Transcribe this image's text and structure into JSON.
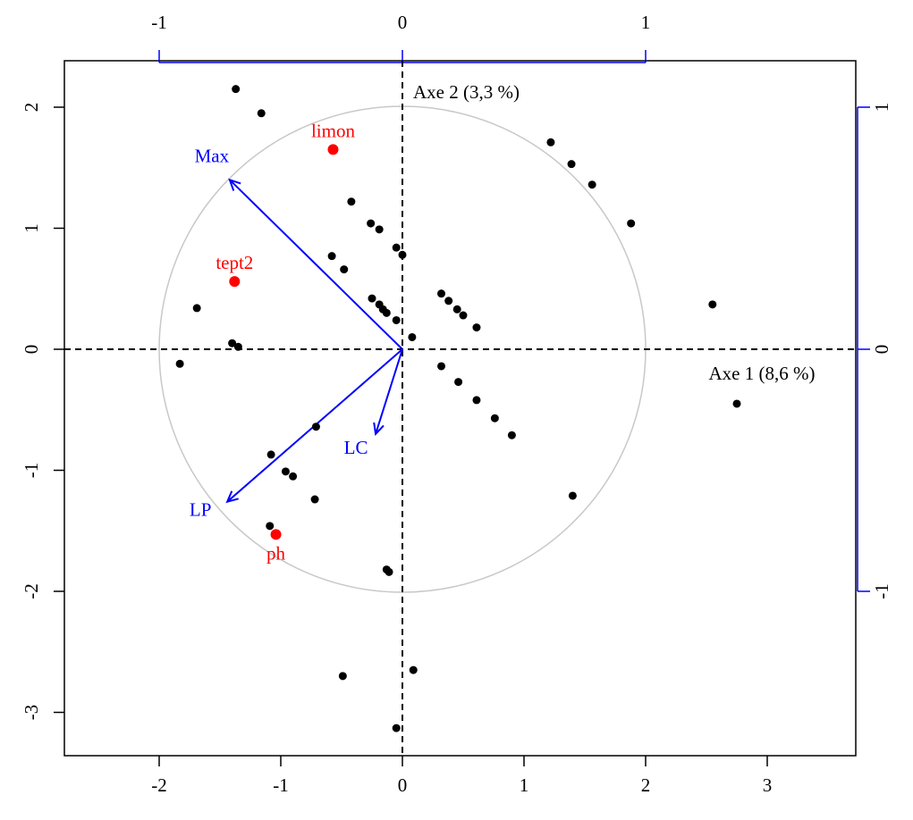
{
  "chart_data": {
    "type": "scatter",
    "title": "",
    "xlabel": "",
    "ylabel": "",
    "xlim": [
      -2.7,
      3.7
    ],
    "ylim": [
      -3.4,
      2.4
    ],
    "bottom_ticks": [
      "-2",
      "-1",
      "0",
      "1",
      "2",
      "3"
    ],
    "left_ticks": [
      "-3",
      "-2",
      "-1",
      "0",
      "1",
      "2"
    ],
    "top_ticks": [
      "-1",
      "0",
      "1"
    ],
    "right_ticks": [
      "-1",
      "0",
      "1"
    ],
    "grid": false,
    "correlation_circle_radius": 2,
    "axis_labels": {
      "axis1": "Axe 1 (8,6 %)",
      "axis2": "Axe 2 (3,3 %)"
    },
    "points": [
      {
        "x": -1.37,
        "y": 2.15
      },
      {
        "x": -1.16,
        "y": 1.95
      },
      {
        "x": -0.42,
        "y": 1.22
      },
      {
        "x": -0.26,
        "y": 1.04
      },
      {
        "x": -0.19,
        "y": 0.99
      },
      {
        "x": -0.05,
        "y": 0.84
      },
      {
        "x": 0.0,
        "y": 0.78
      },
      {
        "x": -0.58,
        "y": 0.77
      },
      {
        "x": -0.48,
        "y": 0.66
      },
      {
        "x": -0.25,
        "y": 0.42
      },
      {
        "x": -0.19,
        "y": 0.37
      },
      {
        "x": -0.16,
        "y": 0.33
      },
      {
        "x": -0.13,
        "y": 0.3
      },
      {
        "x": -0.05,
        "y": 0.24
      },
      {
        "x": 0.08,
        "y": 0.1
      },
      {
        "x": -1.69,
        "y": 0.34
      },
      {
        "x": -1.4,
        "y": 0.05
      },
      {
        "x": -1.35,
        "y": 0.02
      },
      {
        "x": -1.83,
        "y": -0.12
      },
      {
        "x": 1.22,
        "y": 1.71
      },
      {
        "x": 1.39,
        "y": 1.53
      },
      {
        "x": 1.56,
        "y": 1.36
      },
      {
        "x": 1.88,
        "y": 1.04
      },
      {
        "x": 0.32,
        "y": 0.46
      },
      {
        "x": 0.38,
        "y": 0.4
      },
      {
        "x": 0.45,
        "y": 0.33
      },
      {
        "x": 0.5,
        "y": 0.28
      },
      {
        "x": 0.61,
        "y": 0.18
      },
      {
        "x": 2.55,
        "y": 0.37
      },
      {
        "x": 2.75,
        "y": -0.45
      },
      {
        "x": 0.32,
        "y": -0.14
      },
      {
        "x": 0.46,
        "y": -0.27
      },
      {
        "x": 0.61,
        "y": -0.42
      },
      {
        "x": 0.76,
        "y": -0.57
      },
      {
        "x": 0.9,
        "y": -0.71
      },
      {
        "x": -0.71,
        "y": -0.64
      },
      {
        "x": -1.08,
        "y": -0.87
      },
      {
        "x": -0.96,
        "y": -1.01
      },
      {
        "x": -0.9,
        "y": -1.05
      },
      {
        "x": -0.72,
        "y": -1.24
      },
      {
        "x": 1.4,
        "y": -1.21
      },
      {
        "x": -1.09,
        "y": -1.46
      },
      {
        "x": -0.13,
        "y": -1.82
      },
      {
        "x": -0.11,
        "y": -1.84
      },
      {
        "x": 0.09,
        "y": -2.65
      },
      {
        "x": -0.49,
        "y": -2.7
      },
      {
        "x": -0.05,
        "y": -3.13
      }
    ],
    "supplementary_points": [
      {
        "label": "limon",
        "x": -0.57,
        "y": 1.65
      },
      {
        "label": "tept2",
        "x": -1.38,
        "y": 0.56
      },
      {
        "label": "ph",
        "x": -1.04,
        "y": -1.53
      }
    ],
    "arrows": [
      {
        "label": "Max",
        "x": -0.71,
        "y": 0.7
      },
      {
        "label": "LP",
        "x": -0.72,
        "y": -0.63
      },
      {
        "label": "LC",
        "x": -0.11,
        "y": -0.35
      }
    ],
    "colors": {
      "points": "#000000",
      "supplementary": "#ff0000",
      "arrows": "#0000ff",
      "circle": "#c8c8c8",
      "axes_lines": "#000000"
    }
  }
}
